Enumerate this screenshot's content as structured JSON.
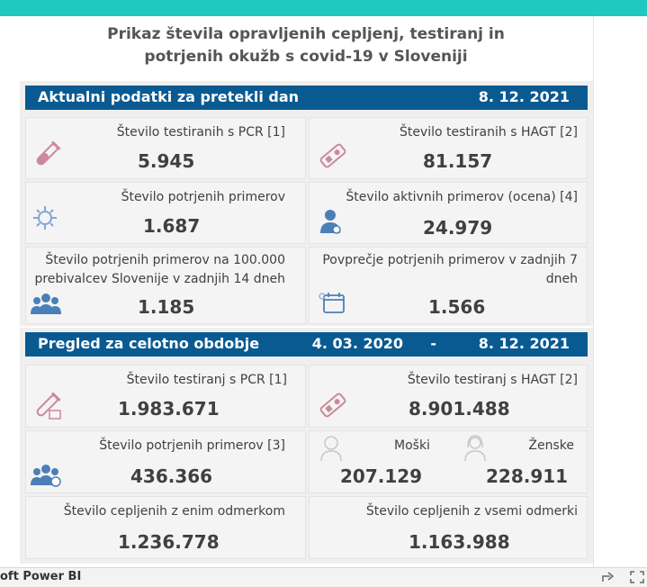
{
  "title": {
    "line1": "Prikaz števila opravljenih cepljenj, testiranj in",
    "line2": "potrjenih okužb s covid-19 v Sloveniji"
  },
  "daily": {
    "header": "Aktualni podatki za pretekli dan",
    "date": "8. 12. 2021",
    "pcr": {
      "label": "Število testiranih s PCR [1]",
      "value": "5.945",
      "icon": "test-tube-icon"
    },
    "hagt": {
      "label": "Število testiranih s HAGT [2]",
      "value": "81.157",
      "icon": "rapid-test-icon"
    },
    "confirmed": {
      "label": "Število potrjenih primerov",
      "value": "1.687",
      "icon": "virus-icon"
    },
    "active": {
      "label": "Število aktivnih primerov (ocena) [4]",
      "value": "24.979",
      "icon": "person-icon"
    },
    "per100k": {
      "label_line1": "Število potrjenih primerov na 100.000",
      "label_line2": "prebivalcev Slovenije v zadnjih 14 dneh",
      "value": "1.185",
      "icon": "group-icon"
    },
    "avg7": {
      "label_line1": "Povprečje potrjenih primerov v zadnjih 7",
      "label_line2": "dneh",
      "value": "1.566",
      "icon": "calendar-icon"
    }
  },
  "overall": {
    "header": "Pregled za celotno obdobje",
    "date_from": "4. 03. 2020",
    "dash": "-",
    "date_to": "8. 12. 2021",
    "pcr": {
      "label": "Število testiranj s PCR [1]",
      "value": "1.983.671",
      "icon": "test-tube-icon"
    },
    "hagt": {
      "label": "Število testiranj s HAGT [2]",
      "value": "8.901.488",
      "icon": "rapid-test-icon"
    },
    "confirmed": {
      "label": "Število potrjenih primerov [3]",
      "value": "436.366",
      "icon": "group-icon"
    },
    "male": {
      "label": "Moški",
      "value": "207.129",
      "icon": "male-icon"
    },
    "female": {
      "label": "Ženske",
      "value": "228.911",
      "icon": "female-icon"
    },
    "vacc_one": {
      "label": "Število cepljenih z enim odmerkom",
      "value": "1.236.778"
    },
    "vacc_all": {
      "label": "Število cepljenih z vsemi odmerki",
      "value": "1.163.988"
    }
  },
  "footer": {
    "app": "oft Power BI"
  },
  "colors": {
    "topbar": "#1fc8c0",
    "header": "#0a5a92",
    "icon_pink": "#c98a9a",
    "icon_blue": "#4b7fb8"
  }
}
